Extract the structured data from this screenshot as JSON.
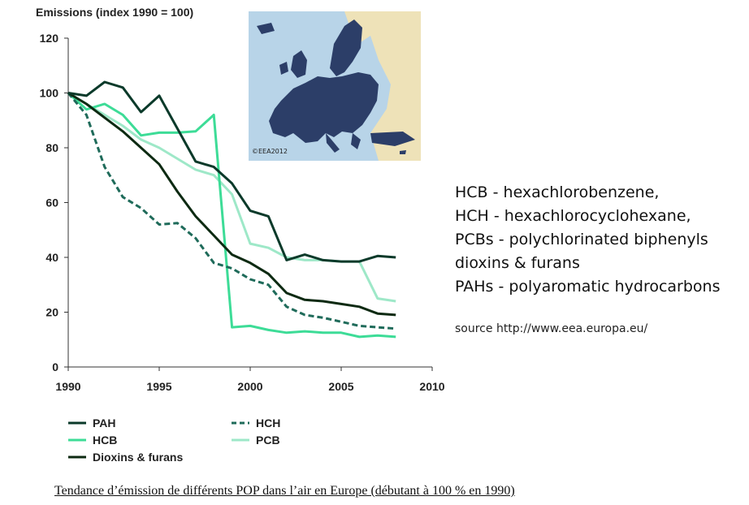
{
  "chart_data": {
    "type": "line",
    "ylabel": "Emissions (index 1990 = 100)",
    "xlabel": "",
    "xlim": [
      1990,
      2010
    ],
    "ylim": [
      0,
      120
    ],
    "xticks": [
      "1990",
      "1995",
      "2000",
      "2005",
      "2010"
    ],
    "yticks": [
      "0",
      "20",
      "40",
      "60",
      "80",
      "100",
      "120"
    ],
    "grid": false,
    "legend_position": "bottom",
    "series": [
      {
        "name": "PAH",
        "color": "#0b3a2a",
        "dash": "solid",
        "x": [
          1990,
          1991,
          1992,
          1993,
          1994,
          1995,
          1996,
          1997,
          1998,
          1999,
          2000,
          2001,
          2002,
          2003,
          2004,
          2005,
          2006,
          2007,
          2008
        ],
        "y": [
          100,
          99,
          104,
          102,
          93,
          99,
          87,
          75,
          73,
          67,
          57,
          55,
          39,
          41,
          39,
          38.5,
          38.5,
          40.5,
          40
        ]
      },
      {
        "name": "HCH",
        "color": "#1f6b5a",
        "dash": "dashed",
        "x": [
          1990,
          1991,
          1992,
          1993,
          1994,
          1995,
          1996,
          1997,
          1998,
          1999,
          2000,
          2001,
          2002,
          2003,
          2004,
          2005,
          2006,
          2007,
          2008
        ],
        "y": [
          100,
          92,
          73,
          62,
          58,
          52,
          52.5,
          47,
          38,
          36,
          32,
          30,
          22,
          19,
          18,
          16.5,
          15,
          14.5,
          14
        ]
      },
      {
        "name": "HCB",
        "color": "#3ddc97",
        "dash": "solid",
        "x": [
          1990,
          1991,
          1992,
          1993,
          1994,
          1995,
          1996,
          1997,
          1998,
          1999,
          2000,
          2001,
          2002,
          2003,
          2004,
          2005,
          2006,
          2007,
          2008
        ],
        "y": [
          100,
          94,
          96,
          92,
          84.5,
          85.5,
          85.5,
          86,
          92,
          14.5,
          15,
          13.5,
          12.5,
          13,
          12.5,
          12.5,
          11,
          11.5,
          11
        ]
      },
      {
        "name": "PCB",
        "color": "#9ee8c8",
        "dash": "solid",
        "x": [
          1990,
          1991,
          1992,
          1993,
          1994,
          1995,
          1996,
          1997,
          1998,
          1999,
          2000,
          2001,
          2002,
          2003,
          2004,
          2005,
          2006,
          2007,
          2008
        ],
        "y": [
          100,
          96,
          92,
          88,
          83,
          80,
          76,
          72,
          70,
          63,
          45,
          43.5,
          40,
          39,
          39,
          38.5,
          38.5,
          25,
          24
        ]
      },
      {
        "name": "Dioxins & furans",
        "color": "#0d2a12",
        "dash": "solid",
        "x": [
          1990,
          1991,
          1992,
          1993,
          1994,
          1995,
          1996,
          1997,
          1998,
          1999,
          2000,
          2001,
          2002,
          2003,
          2004,
          2005,
          2006,
          2007,
          2008
        ],
        "y": [
          100,
          96,
          91,
          86,
          80,
          74,
          64,
          55,
          48,
          41,
          38,
          34,
          27,
          24.5,
          24,
          23,
          22,
          19.5,
          19
        ]
      }
    ]
  },
  "map": {
    "credit": "©EEA2012",
    "sea_color": "#b8d4e8",
    "eu_color": "#2c3e68",
    "other_color": "#eee2b8"
  },
  "glossary": [
    "HCB - hexachlorobenzene,",
    "HCH - hexachlorocyclohexane,",
    "PCBs - polychlorinated biphenyls",
    "dioxins & furans",
    "PAHs - polyaromatic hydrocarbons"
  ],
  "source": "source http://www.eea.europa.eu/",
  "caption": "Tendance d’émission de différents POP dans l’air en Europe (débutant à 100 % en 1990)"
}
